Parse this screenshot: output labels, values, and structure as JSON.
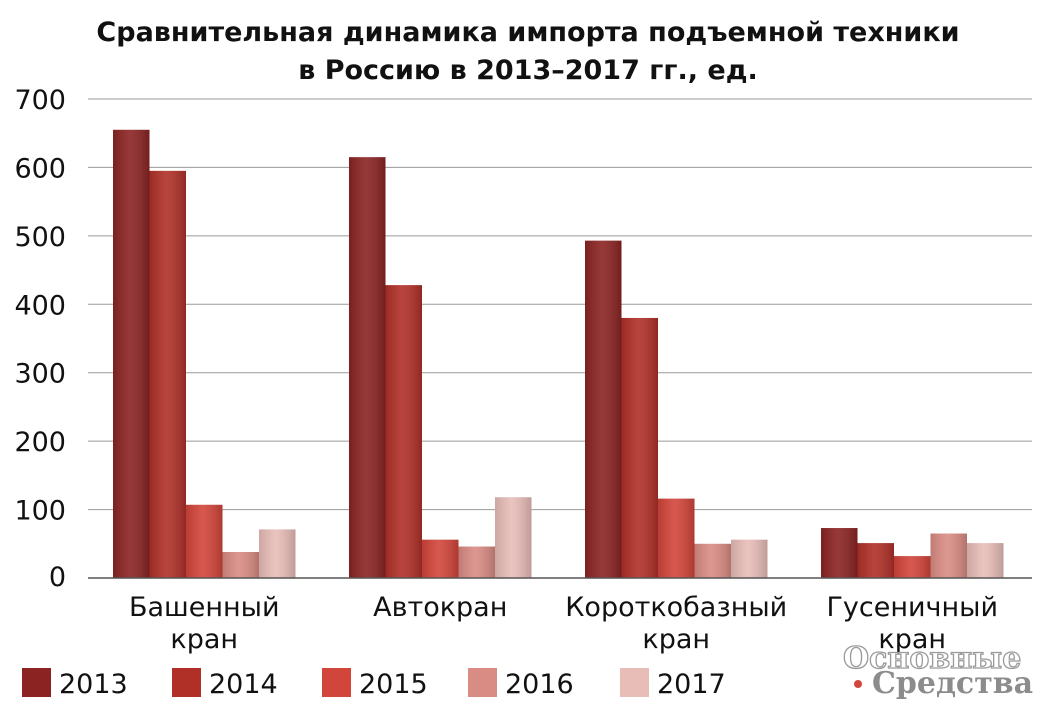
{
  "chart_data": {
    "type": "bar",
    "title": [
      "Сравнительная динамика импорта подъемной техники",
      "в Россию в 2013–2017 гг., ед."
    ],
    "categories": [
      [
        "Башенный",
        "кран"
      ],
      [
        "Автокран"
      ],
      [
        "Короткобазный",
        "кран"
      ],
      [
        "Гусеничный",
        "кран"
      ]
    ],
    "series": [
      {
        "name": "2013",
        "color": "#8b2323",
        "values": [
          655,
          615,
          493,
          73
        ]
      },
      {
        "name": "2014",
        "color": "#b03028",
        "values": [
          595,
          428,
          380,
          51
        ]
      },
      {
        "name": "2015",
        "color": "#d2453a",
        "values": [
          107,
          56,
          116,
          32
        ]
      },
      {
        "name": "2016",
        "color": "#d98c84",
        "values": [
          38,
          46,
          50,
          65
        ]
      },
      {
        "name": "2017",
        "color": "#e8bdb8",
        "values": [
          71,
          118,
          56,
          51
        ]
      }
    ],
    "ylim": [
      0,
      700
    ],
    "yticks": [
      0,
      100,
      200,
      300,
      400,
      500,
      600,
      700
    ],
    "grid": true,
    "legend_position": "bottom"
  },
  "watermark": {
    "line1": "Основные",
    "line2": "Средства",
    "bullet_color": "#d2453a"
  }
}
